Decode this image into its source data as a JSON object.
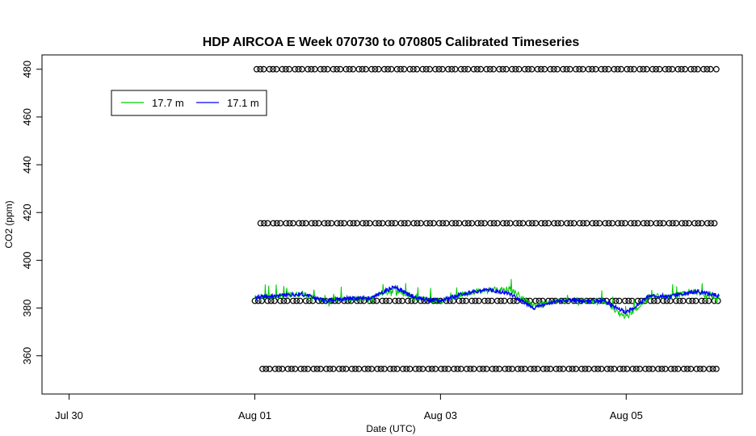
{
  "chart_data": {
    "type": "line",
    "title": "HDP AIRCOA E  Week 070730 to 070805  Calibrated Timeseries",
    "xlabel": "Date (UTC)",
    "ylabel": "CO2 (ppm)",
    "x_start": "2007-07-29",
    "x_end": "2007-08-06",
    "xlim": [
      "2007-07-29 17:00",
      "2007-08-06 06:00"
    ],
    "ylim": [
      344,
      486
    ],
    "x_ticks": [
      {
        "label": "Jul 30",
        "date": "2007-07-30"
      },
      {
        "label": "Aug 01",
        "date": "2007-08-01"
      },
      {
        "label": "Aug 03",
        "date": "2007-08-03"
      },
      {
        "label": "Aug 05",
        "date": "2007-08-05"
      }
    ],
    "y_ticks": [
      360,
      380,
      400,
      420,
      440,
      460,
      480
    ],
    "legend": {
      "placement": "top-left",
      "entries": [
        "17.7 m",
        "17.1 m"
      ]
    },
    "series": [
      {
        "name": "17.7 m",
        "color": "#00cc00",
        "x": [
          "2007-08-01 00:00",
          "2007-08-01 06:00",
          "2007-08-01 12:00",
          "2007-08-01 18:00",
          "2007-08-02 00:00",
          "2007-08-02 06:00",
          "2007-08-02 12:00",
          "2007-08-02 18:00",
          "2007-08-03 00:00",
          "2007-08-03 06:00",
          "2007-08-03 12:00",
          "2007-08-03 18:00",
          "2007-08-04 00:00",
          "2007-08-04 06:00",
          "2007-08-04 12:00",
          "2007-08-04 18:00",
          "2007-08-05 00:00",
          "2007-08-05 06:00",
          "2007-08-05 12:00",
          "2007-08-05 18:00",
          "2007-08-06 00:00"
        ],
        "values": [
          384.5,
          385,
          386,
          383,
          384,
          384,
          388,
          384,
          383,
          386,
          388,
          388,
          381,
          383,
          383,
          383,
          376,
          385,
          385,
          387,
          384
        ]
      },
      {
        "name": "17.1 m",
        "color": "#0000ff",
        "x": [
          "2007-08-01 00:00",
          "2007-08-01 06:00",
          "2007-08-01 12:00",
          "2007-08-01 18:00",
          "2007-08-02 00:00",
          "2007-08-02 06:00",
          "2007-08-02 12:00",
          "2007-08-02 18:00",
          "2007-08-03 00:00",
          "2007-08-03 06:00",
          "2007-08-03 12:00",
          "2007-08-03 18:00",
          "2007-08-04 00:00",
          "2007-08-04 06:00",
          "2007-08-04 12:00",
          "2007-08-04 18:00",
          "2007-08-05 00:00",
          "2007-08-05 06:00",
          "2007-08-05 12:00",
          "2007-08-05 18:00",
          "2007-08-06 00:00"
        ],
        "values": [
          384.5,
          385,
          386,
          383,
          384,
          384,
          389,
          384,
          383,
          386,
          388,
          386,
          380,
          383,
          383,
          383,
          378,
          385,
          385,
          387,
          385
        ]
      }
    ],
    "reference_points": {
      "marker": "open-circle",
      "levels": [
        354.5,
        383,
        415.5,
        480
      ]
    }
  }
}
